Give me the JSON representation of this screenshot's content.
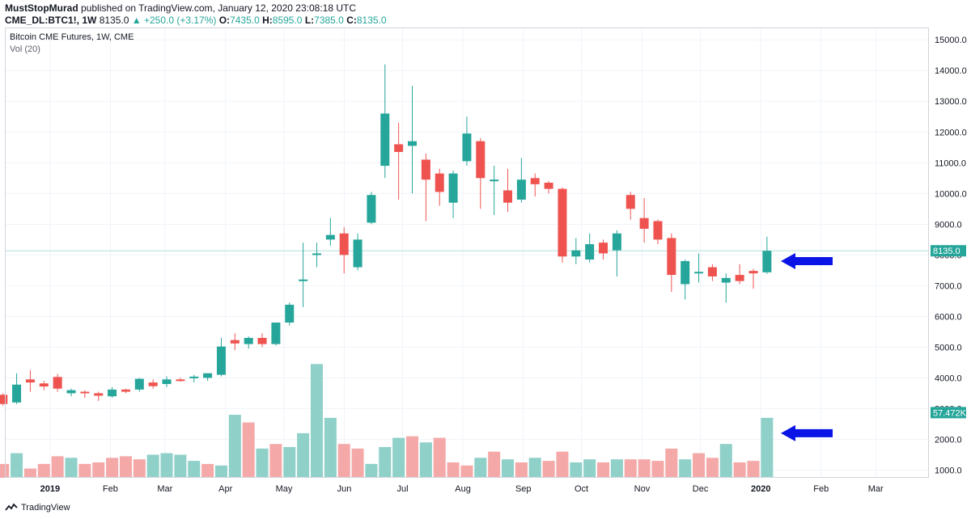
{
  "header": {
    "author": "MustStopMurad",
    "published_text": "published on TradingView.com, January 12, 2020 23:08:18 UTC",
    "symbol": "CME_DL:BTC1!",
    "interval": "1W",
    "last": "8135.0",
    "change_arrow": "▲",
    "change": "+250.0 (+3.17%)",
    "o_label": "O:",
    "o_value": "7435.0",
    "h_label": "H:",
    "h_value": "8595.0",
    "l_label": "L:",
    "l_value": "7385.0",
    "c_label": "C:",
    "c_value": "8135.0"
  },
  "legend": {
    "title": "Bitcoin CME Futures, 1W, CME",
    "volume": "Vol (20)"
  },
  "footer": {
    "brand": "TradingView"
  },
  "colors": {
    "up": "#26a69a",
    "down": "#ef5350",
    "vol_up": "#8fd0c9",
    "vol_down": "#f4a9a8",
    "arrow": "#0a14e6",
    "grid": "#f0f3fa"
  },
  "chart_data": {
    "type": "candlestick",
    "title": "Bitcoin CME Futures, 1W, CME",
    "y_ticks": [
      1000,
      2000,
      3000,
      4000,
      5000,
      6000,
      7000,
      8000,
      9000,
      10000,
      11000,
      12000,
      13000,
      14000,
      15000
    ],
    "y_tick_labels": [
      "1000.0",
      "2000.0",
      "3000.0",
      "4000.0",
      "5000.0",
      "6000.0",
      "7000.0",
      "8000.0",
      "9000.0",
      "10000.0",
      "11000.0",
      "12000.0",
      "13000.0",
      "14000.0",
      "15000.0"
    ],
    "ylim": [
      750,
      15400
    ],
    "x_labels": [
      "2019",
      "Feb",
      "Mar",
      "Apr",
      "May",
      "Jun",
      "Jul",
      "Aug",
      "Sep",
      "Oct",
      "Nov",
      "Dec",
      "2020",
      "Feb",
      "Mar"
    ],
    "x_label_weeks": [
      3.45,
      7.87,
      11.87,
      16.31,
      20.6,
      25.02,
      29.29,
      33.71,
      38.14,
      42.4,
      46.84,
      51.12,
      55.55,
      59.97,
      63.97
    ],
    "last_price_label": "8135.0",
    "last_price": 8135,
    "volume_label": "57.472K",
    "volume_label_price": 2870,
    "candles": [
      {
        "o": 3450,
        "h": 3500,
        "l": 3100,
        "c": 3150
      },
      {
        "o": 3200,
        "h": 4150,
        "l": 3150,
        "c": 3780
      },
      {
        "o": 3950,
        "h": 4250,
        "l": 3550,
        "c": 3850
      },
      {
        "o": 3820,
        "h": 3900,
        "l": 3600,
        "c": 3720
      },
      {
        "o": 4030,
        "h": 4130,
        "l": 3550,
        "c": 3650
      },
      {
        "o": 3500,
        "h": 3650,
        "l": 3400,
        "c": 3600
      },
      {
        "o": 3550,
        "h": 3600,
        "l": 3350,
        "c": 3520
      },
      {
        "o": 3500,
        "h": 3550,
        "l": 3250,
        "c": 3420
      },
      {
        "o": 3400,
        "h": 3700,
        "l": 3350,
        "c": 3620
      },
      {
        "o": 3620,
        "h": 3650,
        "l": 3500,
        "c": 3550
      },
      {
        "o": 3620,
        "h": 4000,
        "l": 3550,
        "c": 3970
      },
      {
        "o": 3850,
        "h": 3950,
        "l": 3650,
        "c": 3730
      },
      {
        "o": 3800,
        "h": 4050,
        "l": 3700,
        "c": 3950
      },
      {
        "o": 3950,
        "h": 4000,
        "l": 3880,
        "c": 3930
      },
      {
        "o": 4020,
        "h": 4100,
        "l": 3850,
        "c": 4040
      },
      {
        "o": 4000,
        "h": 4150,
        "l": 3900,
        "c": 4150
      },
      {
        "o": 4100,
        "h": 5300,
        "l": 4050,
        "c": 5020
      },
      {
        "o": 5230,
        "h": 5450,
        "l": 4900,
        "c": 5120
      },
      {
        "o": 5100,
        "h": 5350,
        "l": 4950,
        "c": 5300
      },
      {
        "o": 5300,
        "h": 5450,
        "l": 5000,
        "c": 5100
      },
      {
        "o": 5100,
        "h": 5800,
        "l": 5050,
        "c": 5800
      },
      {
        "o": 5800,
        "h": 6450,
        "l": 5700,
        "c": 6380
      },
      {
        "o": 7150,
        "h": 8400,
        "l": 6300,
        "c": 7200
      },
      {
        "o": 8000,
        "h": 8400,
        "l": 7600,
        "c": 8050
      },
      {
        "o": 8500,
        "h": 9200,
        "l": 8300,
        "c": 8650
      },
      {
        "o": 8700,
        "h": 8900,
        "l": 7400,
        "c": 8000
      },
      {
        "o": 7600,
        "h": 8700,
        "l": 7500,
        "c": 8500
      },
      {
        "o": 9050,
        "h": 10050,
        "l": 9000,
        "c": 9950
      },
      {
        "o": 10900,
        "h": 14200,
        "l": 10500,
        "c": 12600
      },
      {
        "o": 11600,
        "h": 12300,
        "l": 9800,
        "c": 11350
      },
      {
        "o": 11550,
        "h": 13500,
        "l": 10000,
        "c": 11700
      },
      {
        "o": 11100,
        "h": 11300,
        "l": 9100,
        "c": 10450
      },
      {
        "o": 10650,
        "h": 10800,
        "l": 9600,
        "c": 10050
      },
      {
        "o": 9700,
        "h": 10750,
        "l": 9200,
        "c": 10650
      },
      {
        "o": 11050,
        "h": 12500,
        "l": 10900,
        "c": 11950
      },
      {
        "o": 11700,
        "h": 11800,
        "l": 9500,
        "c": 10500
      },
      {
        "o": 10400,
        "h": 10900,
        "l": 9300,
        "c": 10450
      },
      {
        "o": 10100,
        "h": 10800,
        "l": 9400,
        "c": 9700
      },
      {
        "o": 9800,
        "h": 11150,
        "l": 9700,
        "c": 10450
      },
      {
        "o": 10500,
        "h": 10650,
        "l": 9900,
        "c": 10300
      },
      {
        "o": 10350,
        "h": 10400,
        "l": 10000,
        "c": 10150
      },
      {
        "o": 10150,
        "h": 10200,
        "l": 7750,
        "c": 7950
      },
      {
        "o": 7950,
        "h": 8550,
        "l": 7700,
        "c": 8150
      },
      {
        "o": 7850,
        "h": 8700,
        "l": 7750,
        "c": 8350
      },
      {
        "o": 8400,
        "h": 8500,
        "l": 7850,
        "c": 8050
      },
      {
        "o": 8150,
        "h": 8800,
        "l": 7300,
        "c": 8700
      },
      {
        "o": 9950,
        "h": 10050,
        "l": 9150,
        "c": 9500
      },
      {
        "o": 9200,
        "h": 9850,
        "l": 8400,
        "c": 8850
      },
      {
        "o": 9100,
        "h": 9150,
        "l": 8350,
        "c": 8500
      },
      {
        "o": 8550,
        "h": 8700,
        "l": 6800,
        "c": 7350
      },
      {
        "o": 7050,
        "h": 7850,
        "l": 6550,
        "c": 7800
      },
      {
        "o": 7450,
        "h": 8050,
        "l": 7100,
        "c": 7450
      },
      {
        "o": 7600,
        "h": 7700,
        "l": 7150,
        "c": 7300
      },
      {
        "o": 7100,
        "h": 7400,
        "l": 6450,
        "c": 7250
      },
      {
        "o": 7350,
        "h": 7700,
        "l": 7050,
        "c": 7150
      },
      {
        "o": 7480,
        "h": 7550,
        "l": 6900,
        "c": 7400
      },
      {
        "o": 7435,
        "h": 8595,
        "l": 7385,
        "c": 8135
      }
    ],
    "volumes": [
      {
        "v": 1200,
        "up": false
      },
      {
        "v": 1550,
        "up": true
      },
      {
        "v": 1050,
        "up": false
      },
      {
        "v": 1200,
        "up": false
      },
      {
        "v": 1450,
        "up": false
      },
      {
        "v": 1400,
        "up": true
      },
      {
        "v": 1200,
        "up": false
      },
      {
        "v": 1250,
        "up": false
      },
      {
        "v": 1400,
        "up": false
      },
      {
        "v": 1450,
        "up": false
      },
      {
        "v": 1350,
        "up": false
      },
      {
        "v": 1500,
        "up": true
      },
      {
        "v": 1550,
        "up": true
      },
      {
        "v": 1500,
        "up": true
      },
      {
        "v": 1300,
        "up": true
      },
      {
        "v": 1200,
        "up": false
      },
      {
        "v": 1150,
        "up": true
      },
      {
        "v": 2800,
        "up": true
      },
      {
        "v": 2550,
        "up": false
      },
      {
        "v": 1700,
        "up": true
      },
      {
        "v": 1850,
        "up": false
      },
      {
        "v": 1750,
        "up": true
      },
      {
        "v": 2200,
        "up": true
      },
      {
        "v": 4450,
        "up": true
      },
      {
        "v": 2700,
        "up": true
      },
      {
        "v": 1850,
        "up": false
      },
      {
        "v": 1700,
        "up": false
      },
      {
        "v": 1200,
        "up": true
      },
      {
        "v": 1750,
        "up": true
      },
      {
        "v": 2050,
        "up": true
      },
      {
        "v": 2100,
        "up": false
      },
      {
        "v": 1900,
        "up": true
      },
      {
        "v": 2050,
        "up": false
      },
      {
        "v": 1250,
        "up": false
      },
      {
        "v": 1150,
        "up": false
      },
      {
        "v": 1400,
        "up": true
      },
      {
        "v": 1600,
        "up": false
      },
      {
        "v": 1350,
        "up": true
      },
      {
        "v": 1250,
        "up": false
      },
      {
        "v": 1400,
        "up": true
      },
      {
        "v": 1300,
        "up": false
      },
      {
        "v": 1600,
        "up": false
      },
      {
        "v": 1250,
        "up": true
      },
      {
        "v": 1350,
        "up": true
      },
      {
        "v": 1250,
        "up": false
      },
      {
        "v": 1350,
        "up": true
      },
      {
        "v": 1350,
        "up": false
      },
      {
        "v": 1350,
        "up": false
      },
      {
        "v": 1300,
        "up": false
      },
      {
        "v": 1700,
        "up": false
      },
      {
        "v": 1350,
        "up": true
      },
      {
        "v": 1550,
        "up": false
      },
      {
        "v": 1400,
        "up": false
      },
      {
        "v": 1850,
        "up": true
      },
      {
        "v": 1250,
        "up": false
      },
      {
        "v": 1300,
        "up": false
      },
      {
        "v": 2700,
        "up": true
      }
    ],
    "arrow_prices": [
      7800,
      2200
    ]
  }
}
